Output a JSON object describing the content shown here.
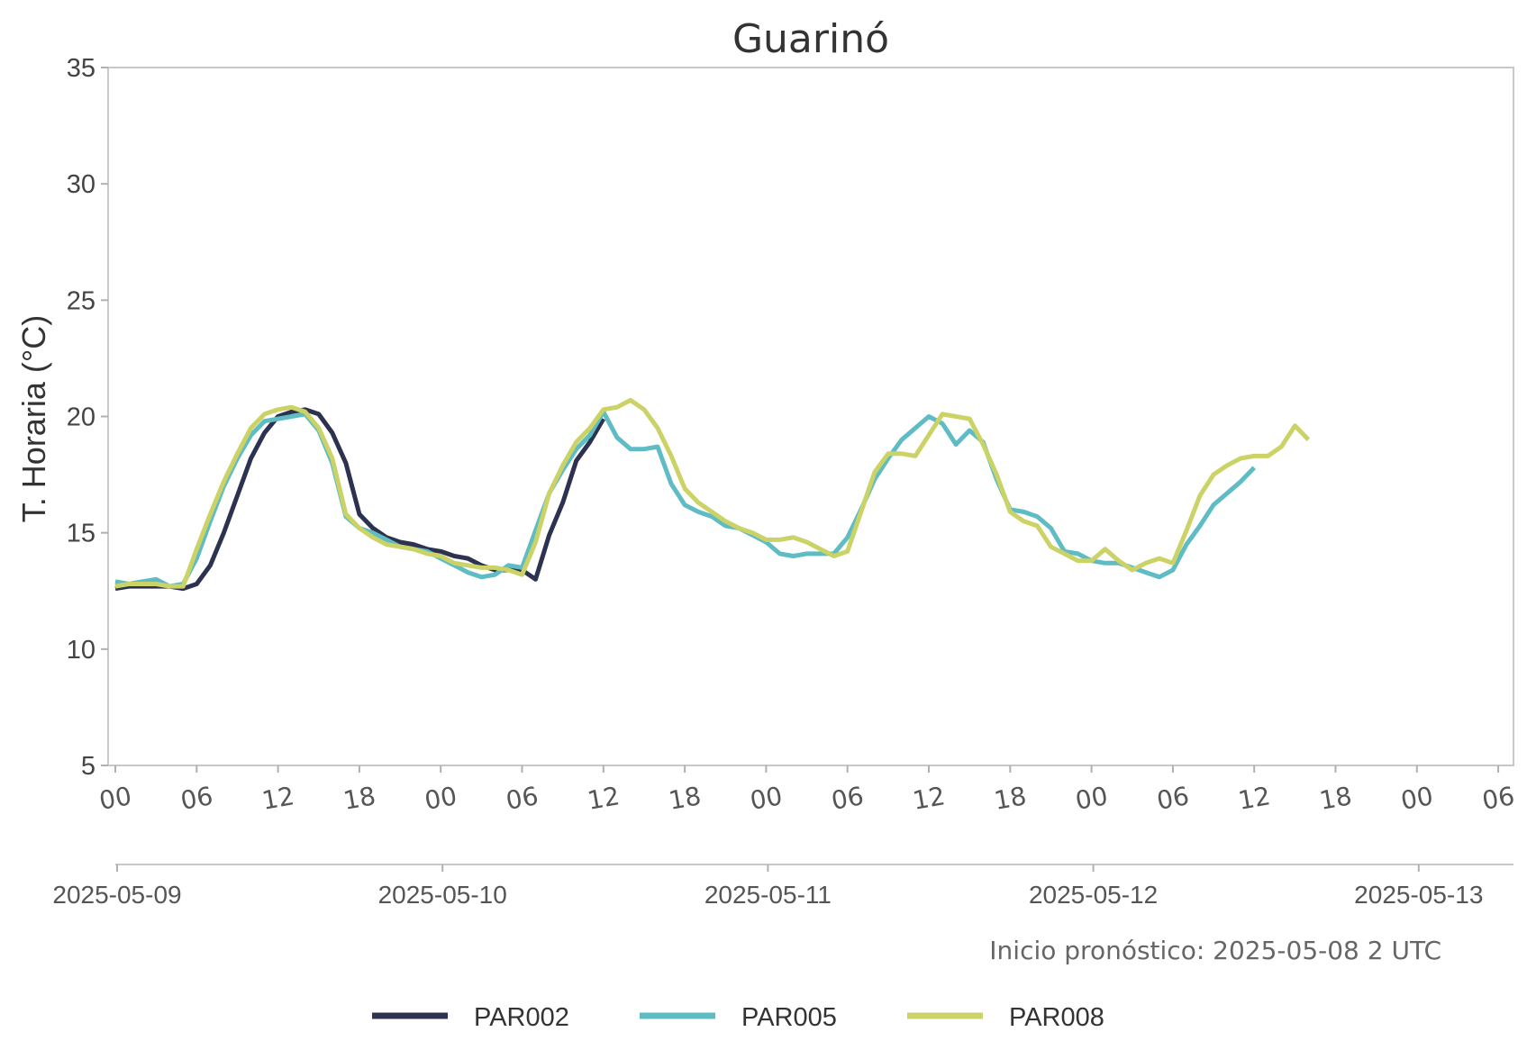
{
  "chart_data": {
    "type": "line",
    "title": "Guarinó",
    "xlabel": "",
    "ylabel": "T. Horaria (°C)",
    "ylim": [
      5,
      35
    ],
    "y_ticks": [
      "5",
      "10",
      "15",
      "20",
      "25",
      "30",
      "35"
    ],
    "xlim": [
      "2025-05-09 00:00",
      "2025-05-13 06:00"
    ],
    "hour_ticks": [
      "00",
      "06",
      "12",
      "18",
      "00",
      "06",
      "12",
      "18",
      "00",
      "06",
      "12",
      "18",
      "00",
      "06",
      "12",
      "18",
      "00",
      "06"
    ],
    "date_ticks": [
      "2025-05-09",
      "2025-05-10",
      "2025-05-11",
      "2025-05-12",
      "2025-05-13"
    ],
    "grid": false,
    "legend_position": "bottom-center",
    "annotation": "Inicio pronóstico: 2025-05-08 2 UTC",
    "x_step_hours": 1,
    "series": [
      {
        "name": "PAR002",
        "color": "#2d3250",
        "start": "2025-05-09 00:00",
        "values": [
          12.6,
          12.7,
          12.7,
          12.7,
          12.7,
          12.6,
          12.8,
          13.6,
          15.0,
          16.6,
          18.2,
          19.3,
          20.0,
          20.2,
          20.3,
          20.1,
          19.3,
          18.0,
          15.8,
          15.2,
          14.8,
          14.6,
          14.5,
          14.3,
          14.2,
          14.0,
          13.9,
          13.6,
          13.4,
          13.4,
          13.4,
          13.0,
          14.9,
          16.3,
          18.1,
          18.9,
          19.9
        ]
      },
      {
        "name": "PAR005",
        "color": "#5fbcc4",
        "start": "2025-05-09 00:00",
        "values": [
          12.9,
          12.8,
          12.9,
          13.0,
          12.7,
          12.8,
          13.9,
          15.5,
          17.0,
          18.2,
          19.2,
          19.8,
          19.9,
          20.0,
          20.1,
          19.4,
          18.0,
          15.7,
          15.2,
          15.0,
          14.7,
          14.4,
          14.3,
          14.2,
          13.9,
          13.6,
          13.3,
          13.1,
          13.2,
          13.6,
          13.5,
          15.1,
          16.7,
          17.7,
          18.6,
          19.2,
          20.2,
          19.1,
          18.6,
          18.6,
          18.7,
          17.1,
          16.2,
          15.9,
          15.7,
          15.3,
          15.2,
          14.9,
          14.6,
          14.1,
          14.0,
          14.1,
          14.1,
          14.1,
          14.8,
          16.0,
          17.3,
          18.2,
          19.0,
          19.5,
          20.0,
          19.7,
          18.8,
          19.4,
          18.9,
          17.3,
          16.0,
          15.9,
          15.7,
          15.2,
          14.2,
          14.1,
          13.8,
          13.7,
          13.7,
          13.5,
          13.3,
          13.1,
          13.4,
          14.5,
          15.3,
          16.2,
          16.7,
          17.2,
          17.8
        ]
      },
      {
        "name": "PAR008",
        "color": "#cbd266",
        "start": "2025-05-09 00:00",
        "values": [
          12.7,
          12.8,
          12.8,
          12.8,
          12.7,
          12.7,
          14.3,
          15.8,
          17.2,
          18.4,
          19.5,
          20.1,
          20.3,
          20.4,
          20.2,
          19.5,
          18.2,
          15.8,
          15.2,
          14.8,
          14.5,
          14.4,
          14.3,
          14.1,
          14.0,
          13.7,
          13.6,
          13.5,
          13.5,
          13.4,
          13.2,
          14.6,
          16.7,
          17.9,
          18.9,
          19.5,
          20.3,
          20.4,
          20.7,
          20.3,
          19.5,
          18.3,
          16.9,
          16.3,
          15.9,
          15.5,
          15.2,
          15.0,
          14.7,
          14.7,
          14.8,
          14.6,
          14.3,
          14.0,
          14.2,
          15.9,
          17.6,
          18.4,
          18.4,
          18.3,
          19.2,
          20.1,
          20.0,
          19.9,
          18.8,
          17.5,
          15.9,
          15.5,
          15.3,
          14.4,
          14.1,
          13.8,
          13.8,
          14.3,
          13.8,
          13.4,
          13.7,
          13.9,
          13.7,
          15.1,
          16.6,
          17.5,
          17.9,
          18.2,
          18.3,
          18.3,
          18.7,
          19.6,
          19.0
        ]
      }
    ]
  }
}
